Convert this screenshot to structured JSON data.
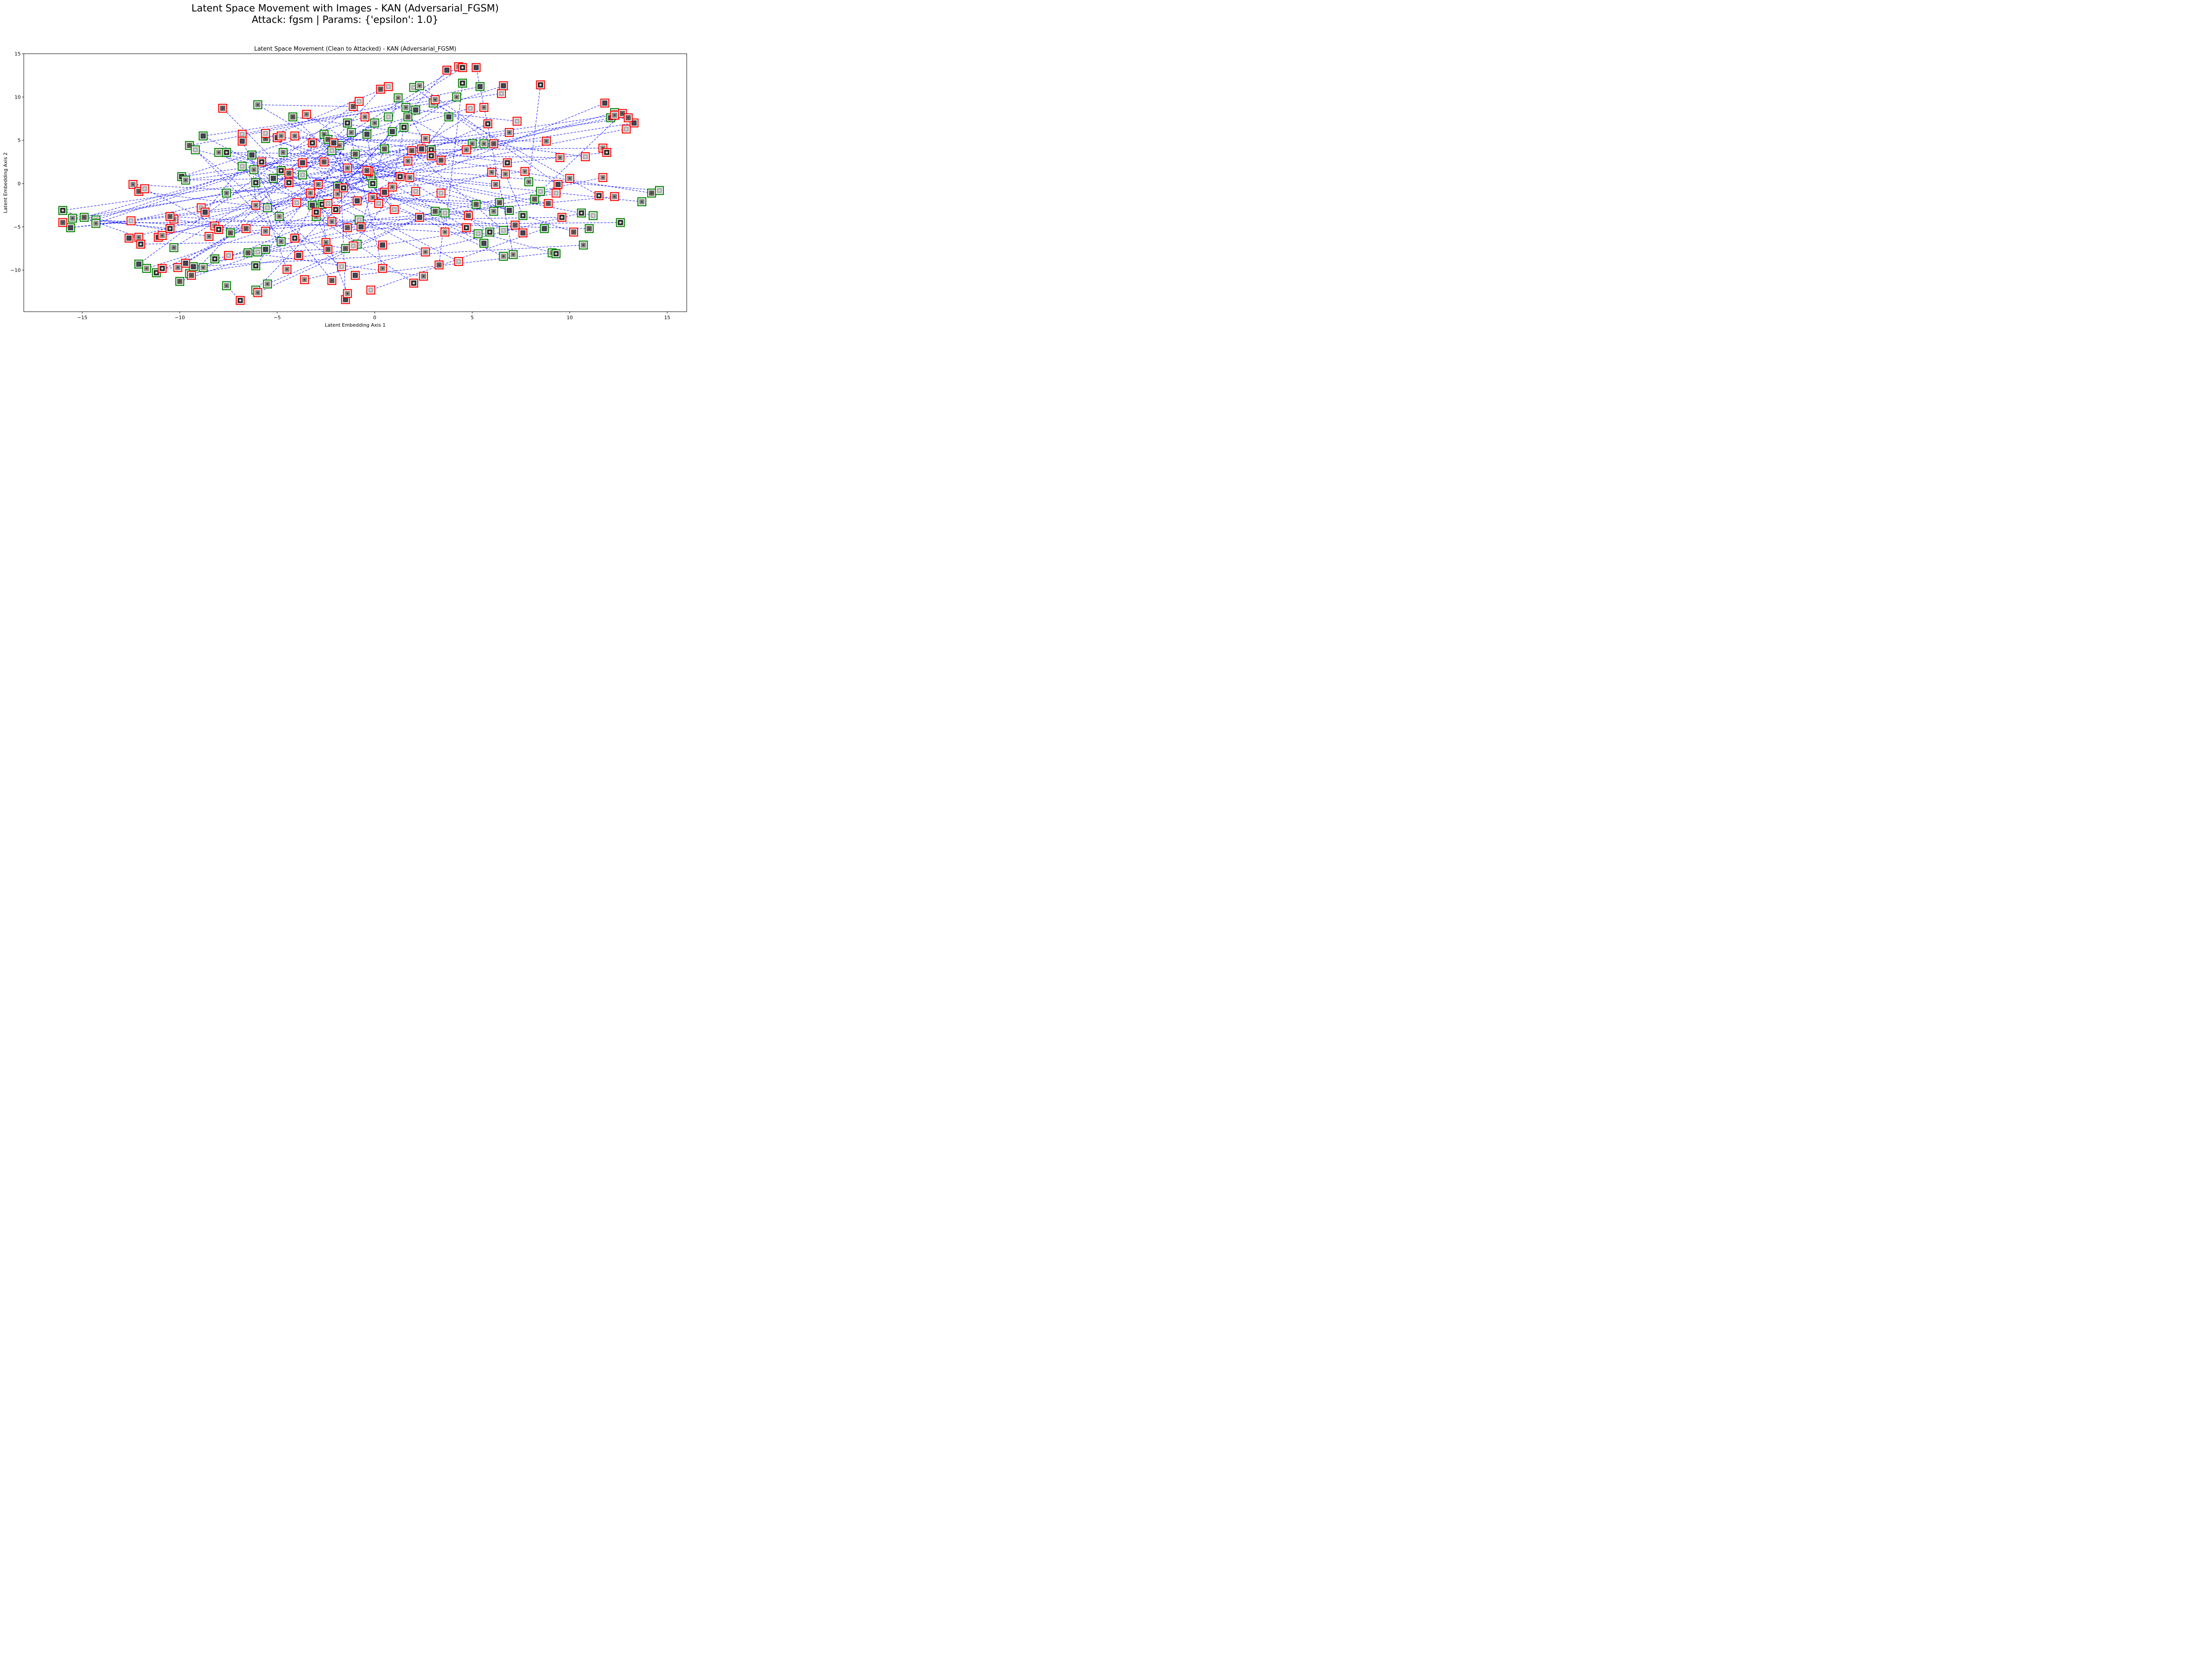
{
  "chart_data": {
    "type": "scatter",
    "suptitle_line1": "Latent Space Movement with Images - KAN (Adversarial_FGSM)",
    "suptitle_line2": "Attack: fgsm | Params: {'epsilon': 1.0}",
    "title": "Latent Space Movement (Clean to Attacked) - KAN (Adversarial_FGSM)",
    "xlabel": "Latent Embedding Axis 1",
    "ylabel": "Latent Embedding Axis 2",
    "xlim": [
      -18.0,
      16.0
    ],
    "ylim": [
      -14.8,
      15.0
    ],
    "xticks": [
      -15,
      -10,
      -5,
      0,
      5,
      10,
      15
    ],
    "yticks": [
      -10,
      -5,
      0,
      5,
      10,
      15
    ],
    "xtick_labels": [
      "−15",
      "−10",
      "−5",
      "0",
      "5",
      "10",
      "15"
    ],
    "ytick_labels": [
      "−10",
      "−5",
      "0",
      "5",
      "10",
      "15"
    ],
    "grid": false,
    "legend": "none",
    "colors": {
      "clean_marker": "#008000",
      "attacked_marker": "#ff0000",
      "movement_line": "#0000ff"
    },
    "series": [
      {
        "role": "clean",
        "points": [
          [
            -16.0,
            -3.1
          ],
          [
            -15.5,
            -4.0
          ],
          [
            -14.9,
            -3.9
          ],
          [
            -14.3,
            -4.2
          ],
          [
            -15.6,
            -5.1
          ],
          [
            -14.3,
            -4.6
          ],
          [
            -9.9,
            0.8
          ],
          [
            -9.7,
            0.4
          ],
          [
            -9.5,
            4.4
          ],
          [
            -9.2,
            3.9
          ],
          [
            -8.8,
            5.5
          ],
          [
            -8.0,
            3.6
          ],
          [
            -7.6,
            3.6
          ],
          [
            -7.6,
            -1.1
          ],
          [
            -7.4,
            -5.7
          ],
          [
            -6.8,
            2.0
          ],
          [
            -6.3,
            3.3
          ],
          [
            -6.2,
            1.6
          ],
          [
            -6.1,
            0.1
          ],
          [
            -6.0,
            9.1
          ],
          [
            -5.6,
            5.2
          ],
          [
            -5.5,
            -2.8
          ],
          [
            -5.2,
            0.6
          ],
          [
            -4.9,
            -3.8
          ],
          [
            -4.8,
            1.5
          ],
          [
            -4.7,
            3.6
          ],
          [
            -4.2,
            7.7
          ],
          [
            -3.7,
            1.0
          ],
          [
            -3.2,
            -2.5
          ],
          [
            -3.0,
            -3.8
          ],
          [
            -2.7,
            -2.4
          ],
          [
            -2.6,
            5.7
          ],
          [
            -2.4,
            5.1
          ],
          [
            -2.2,
            3.8
          ],
          [
            -1.9,
            -0.3
          ],
          [
            -1.8,
            4.4
          ],
          [
            -1.4,
            7.0
          ],
          [
            -1.2,
            5.9
          ],
          [
            -1.0,
            3.4
          ],
          [
            -0.8,
            -4.2
          ],
          [
            -0.4,
            5.7
          ],
          [
            -0.2,
            0.9
          ],
          [
            -0.1,
            0.0
          ],
          [
            0.0,
            7.0
          ],
          [
            0.5,
            4.0
          ],
          [
            0.7,
            7.7
          ],
          [
            0.9,
            6.0
          ],
          [
            1.2,
            9.9
          ],
          [
            1.5,
            6.5
          ],
          [
            1.6,
            8.8
          ],
          [
            1.7,
            7.7
          ],
          [
            2.0,
            11.1
          ],
          [
            2.1,
            8.5
          ],
          [
            2.3,
            11.3
          ],
          [
            2.9,
            3.9
          ],
          [
            3.0,
            9.3
          ],
          [
            3.1,
            -3.2
          ],
          [
            3.6,
            -3.4
          ],
          [
            3.8,
            7.7
          ],
          [
            4.2,
            10.0
          ],
          [
            4.5,
            11.6
          ],
          [
            5.0,
            4.6
          ],
          [
            5.2,
            -2.4
          ],
          [
            5.3,
            -5.8
          ],
          [
            5.4,
            11.2
          ],
          [
            5.6,
            4.6
          ],
          [
            5.9,
            -5.6
          ],
          [
            6.1,
            -3.2
          ],
          [
            6.4,
            -2.2
          ],
          [
            6.6,
            -5.4
          ],
          [
            6.9,
            -3.1
          ],
          [
            7.1,
            -8.2
          ],
          [
            7.6,
            -3.7
          ],
          [
            7.9,
            0.2
          ],
          [
            8.2,
            -1.8
          ],
          [
            8.5,
            -0.9
          ],
          [
            8.7,
            -5.2
          ],
          [
            9.1,
            -8.0
          ],
          [
            10.6,
            -3.4
          ],
          [
            10.7,
            -7.1
          ],
          [
            11.0,
            -5.2
          ],
          [
            11.2,
            -3.7
          ],
          [
            12.1,
            7.6
          ],
          [
            12.3,
            8.2
          ],
          [
            12.6,
            -4.5
          ],
          [
            13.7,
            -2.1
          ],
          [
            14.2,
            -1.1
          ],
          [
            14.6,
            -0.8
          ],
          [
            -12.1,
            -9.3
          ],
          [
            -11.7,
            -9.8
          ],
          [
            -11.2,
            -10.3
          ],
          [
            -10.3,
            -7.4
          ],
          [
            -10.0,
            -11.3
          ],
          [
            -9.5,
            -10.4
          ],
          [
            -9.3,
            -9.6
          ],
          [
            -8.8,
            -9.7
          ],
          [
            -8.2,
            -8.7
          ],
          [
            -7.6,
            -11.8
          ],
          [
            -6.5,
            -8.0
          ],
          [
            -6.0,
            -7.9
          ],
          [
            -5.6,
            -7.6
          ],
          [
            -5.5,
            -11.6
          ],
          [
            -6.1,
            -9.5
          ],
          [
            -4.8,
            -6.7
          ],
          [
            -1.5,
            -7.5
          ],
          [
            -0.9,
            -7.0
          ],
          [
            5.6,
            -6.9
          ],
          [
            6.6,
            -8.4
          ],
          [
            9.3,
            -8.1
          ],
          [
            -6.1,
            -12.3
          ]
        ]
      },
      {
        "role": "attacked",
        "points": [
          [
            -16.0,
            -4.5
          ],
          [
            -12.5,
            -4.3
          ],
          [
            -12.6,
            -6.3
          ],
          [
            -12.1,
            -6.2
          ],
          [
            -12.0,
            -7.0
          ],
          [
            -12.4,
            -0.1
          ],
          [
            -12.1,
            -0.9
          ],
          [
            -11.8,
            -0.6
          ],
          [
            -11.1,
            -6.2
          ],
          [
            -10.9,
            -6.0
          ],
          [
            -10.5,
            -5.2
          ],
          [
            -10.3,
            -4.1
          ],
          [
            -10.5,
            -3.8
          ],
          [
            -8.9,
            -2.8
          ],
          [
            -8.7,
            -3.3
          ],
          [
            -8.2,
            -4.9
          ],
          [
            -8.0,
            -5.3
          ],
          [
            -8.5,
            -6.1
          ],
          [
            -7.8,
            8.7
          ],
          [
            -6.8,
            5.7
          ],
          [
            -6.8,
            4.9
          ],
          [
            -6.1,
            -2.5
          ],
          [
            -5.8,
            2.5
          ],
          [
            -5.6,
            -5.5
          ],
          [
            -6.6,
            -5.2
          ],
          [
            -5.6,
            5.8
          ],
          [
            -5.0,
            5.3
          ],
          [
            -4.8,
            5.5
          ],
          [
            -4.4,
            0.1
          ],
          [
            -4.1,
            5.5
          ],
          [
            -4.4,
            1.2
          ],
          [
            -4.0,
            -2.2
          ],
          [
            -3.7,
            2.4
          ],
          [
            -3.5,
            8.0
          ],
          [
            -3.2,
            4.7
          ],
          [
            -2.9,
            -0.1
          ],
          [
            -2.6,
            2.5
          ],
          [
            -2.4,
            -2.3
          ],
          [
            -2.1,
            4.7
          ],
          [
            -1.9,
            -1.2
          ],
          [
            -1.6,
            -0.5
          ],
          [
            -1.4,
            1.8
          ],
          [
            -1.1,
            8.9
          ],
          [
            -0.8,
            9.5
          ],
          [
            -0.7,
            -5.0
          ],
          [
            -0.5,
            7.7
          ],
          [
            -0.3,
            1.4
          ],
          [
            -0.1,
            -1.6
          ],
          [
            0.3,
            10.9
          ],
          [
            0.7,
            11.2
          ],
          [
            0.5,
            -1.0
          ],
          [
            0.9,
            -0.4
          ],
          [
            1.3,
            0.8
          ],
          [
            1.7,
            2.6
          ],
          [
            1.9,
            3.8
          ],
          [
            2.1,
            -0.9
          ],
          [
            2.4,
            4.0
          ],
          [
            2.6,
            5.2
          ],
          [
            2.9,
            3.2
          ],
          [
            3.1,
            9.7
          ],
          [
            3.4,
            2.7
          ],
          [
            3.4,
            -1.1
          ],
          [
            3.7,
            13.1
          ],
          [
            4.3,
            13.5
          ],
          [
            4.5,
            13.4
          ],
          [
            4.7,
            3.9
          ],
          [
            4.8,
            -3.7
          ],
          [
            4.9,
            8.7
          ],
          [
            5.2,
            13.4
          ],
          [
            5.6,
            8.8
          ],
          [
            5.8,
            6.9
          ],
          [
            6.0,
            1.3
          ],
          [
            6.1,
            4.6
          ],
          [
            6.5,
            10.4
          ],
          [
            6.6,
            11.3
          ],
          [
            6.7,
            1.1
          ],
          [
            6.8,
            2.4
          ],
          [
            6.9,
            5.9
          ],
          [
            7.2,
            -4.8
          ],
          [
            7.3,
            7.2
          ],
          [
            7.6,
            -5.7
          ],
          [
            7.7,
            1.4
          ],
          [
            8.5,
            11.4
          ],
          [
            8.8,
            4.9
          ],
          [
            8.9,
            -2.3
          ],
          [
            9.3,
            -1.1
          ],
          [
            9.4,
            -0.1
          ],
          [
            9.5,
            3.0
          ],
          [
            9.6,
            -3.9
          ],
          [
            10.0,
            0.6
          ],
          [
            10.2,
            -5.6
          ],
          [
            10.8,
            3.1
          ],
          [
            11.8,
            9.3
          ],
          [
            11.7,
            4.1
          ],
          [
            11.9,
            3.6
          ],
          [
            12.3,
            7.9
          ],
          [
            12.7,
            8.1
          ],
          [
            12.9,
            6.3
          ],
          [
            13.3,
            7.0
          ],
          [
            11.7,
            0.7
          ],
          [
            11.5,
            -1.4
          ],
          [
            12.3,
            -1.5
          ],
          [
            13.0,
            7.6
          ],
          [
            -0.2,
            -12.3
          ],
          [
            -1.5,
            -13.4
          ],
          [
            -1.4,
            -12.7
          ],
          [
            -6.9,
            -13.5
          ],
          [
            -6.0,
            -12.6
          ],
          [
            -2.2,
            -11.2
          ],
          [
            -1.7,
            -9.6
          ],
          [
            -1.0,
            -10.6
          ],
          [
            0.4,
            -9.8
          ],
          [
            2.0,
            -11.5
          ],
          [
            2.5,
            -10.7
          ],
          [
            3.3,
            -9.4
          ],
          [
            4.3,
            -9.0
          ],
          [
            -3.9,
            -8.3
          ],
          [
            -3.6,
            -11.1
          ],
          [
            -4.1,
            -6.3
          ],
          [
            -2.5,
            -6.8
          ],
          [
            -2.4,
            -7.6
          ],
          [
            -1.1,
            -7.2
          ],
          [
            0.4,
            -7.1
          ],
          [
            2.6,
            -7.9
          ],
          [
            -10.9,
            -9.8
          ],
          [
            -10.1,
            -9.7
          ],
          [
            -9.4,
            -10.6
          ],
          [
            -7.5,
            -8.3
          ],
          [
            -9.7,
            -9.2
          ],
          [
            -4.5,
            -9.9
          ],
          [
            -3.0,
            -3.3
          ],
          [
            -2.2,
            -4.4
          ],
          [
            -1.4,
            -5.1
          ],
          [
            1.0,
            -3.0
          ],
          [
            2.3,
            -3.9
          ],
          [
            3.6,
            -5.6
          ],
          [
            4.7,
            -5.1
          ],
          [
            6.2,
            -0.1
          ],
          [
            -0.4,
            1.5
          ],
          [
            0.2,
            -2.3
          ],
          [
            -0.9,
            -2.0
          ],
          [
            -3.3,
            -1.1
          ],
          [
            -2.0,
            -3.0
          ],
          [
            1.8,
            0.7
          ]
        ]
      }
    ]
  }
}
